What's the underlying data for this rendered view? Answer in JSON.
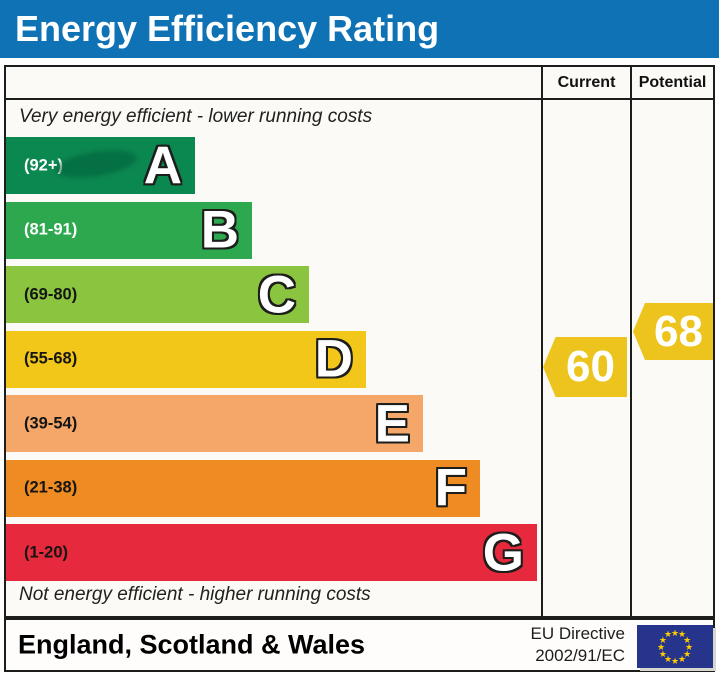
{
  "title": "Energy Efficiency Rating",
  "header": {
    "current": "Current",
    "potential": "Potential"
  },
  "captions": {
    "top": "Very energy efficient - lower running costs",
    "bottom": "Not energy efficient - higher running costs"
  },
  "bands": [
    {
      "letter": "A",
      "range": "(92+)",
      "color": "#0b8750"
    },
    {
      "letter": "B",
      "range": "(81-91)",
      "color": "#2da84e"
    },
    {
      "letter": "C",
      "range": "(69-80)",
      "color": "#8bc540"
    },
    {
      "letter": "D",
      "range": "(55-68)",
      "color": "#f2c719"
    },
    {
      "letter": "E",
      "range": "(39-54)",
      "color": "#f4a768"
    },
    {
      "letter": "F",
      "range": "(21-38)",
      "color": "#ee8b23"
    },
    {
      "letter": "G",
      "range": "(1-20)",
      "color": "#e7293d"
    }
  ],
  "ratings": {
    "current": {
      "value": "60",
      "color": "#edc41e"
    },
    "potential": {
      "value": "68",
      "color": "#edc41e"
    }
  },
  "footer": {
    "region": "England, Scotland & Wales",
    "directive_line1": "EU Directive",
    "directive_line2": "2002/91/EC",
    "flag": {
      "name": "eu-flag",
      "background": "#26348b",
      "star_color": "#ffcc00",
      "star_char": "★",
      "star_count": 12
    }
  },
  "colors": {
    "title_bar": "#0e72b5",
    "border": "#1d1d1b"
  },
  "chart_data": {
    "type": "bar",
    "title": "Energy Efficiency Rating",
    "categories": [
      "A",
      "B",
      "C",
      "D",
      "E",
      "F",
      "G"
    ],
    "band_ranges": [
      "92+",
      "81-91",
      "69-80",
      "55-68",
      "39-54",
      "21-38",
      "1-20"
    ],
    "band_colors": [
      "#0b8750",
      "#2da84e",
      "#8bc540",
      "#f2c719",
      "#f4a768",
      "#ee8b23",
      "#e7293d"
    ],
    "values": {
      "current": 60,
      "potential": 68
    },
    "value_bands": {
      "current": "D",
      "potential": "D"
    },
    "columns": [
      "Current",
      "Potential"
    ],
    "annotations": [
      "Very energy efficient - lower running costs",
      "Not energy efficient - higher running costs"
    ],
    "region": "England, Scotland & Wales",
    "directive": "EU Directive 2002/91/EC"
  }
}
